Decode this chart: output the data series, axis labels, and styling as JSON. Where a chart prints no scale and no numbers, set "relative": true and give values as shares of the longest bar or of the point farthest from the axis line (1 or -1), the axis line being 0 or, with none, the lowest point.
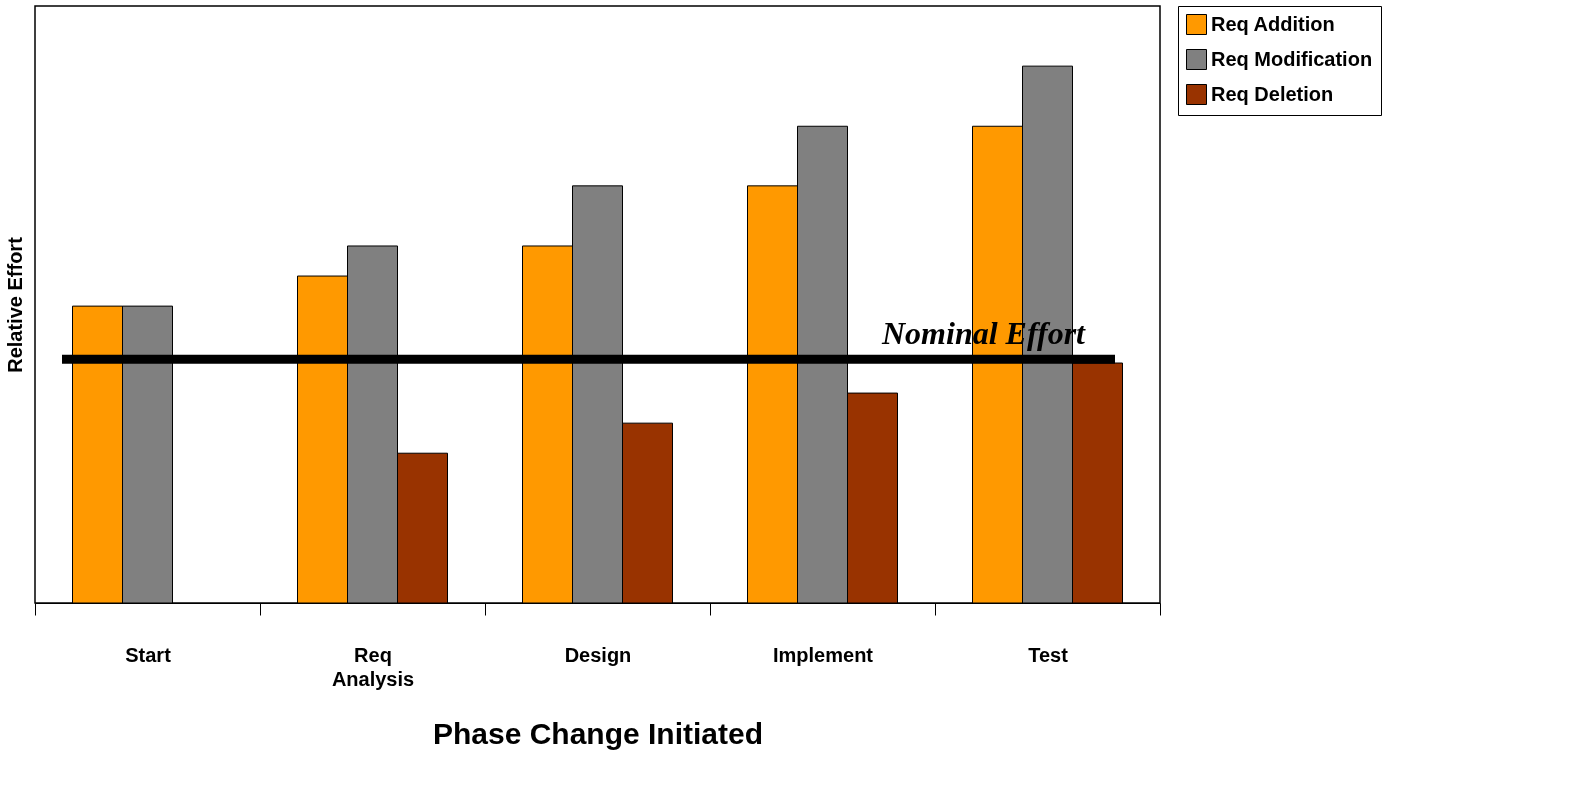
{
  "chart_data": {
    "type": "bar",
    "relative": true,
    "xlabel": "Phase Change Initiated",
    "ylabel": "Relative Effort",
    "categories": [
      "Start",
      "Req Analysis",
      "Design",
      "Implement",
      "Test"
    ],
    "series": [
      {
        "name": "Req Addition",
        "color": "#ff9900",
        "values": [
          0.553,
          0.609,
          0.665,
          0.777,
          0.888
        ]
      },
      {
        "name": "Req Modification",
        "color": "#808080",
        "values": [
          0.553,
          0.665,
          0.777,
          0.888,
          1
        ]
      },
      {
        "name": "Req Deletion",
        "color": "#993300",
        "values": [
          null,
          0.279,
          0.335,
          0.391,
          0.447
        ]
      }
    ],
    "ref_lines": [
      {
        "axis": "y",
        "value": 0.454,
        "label": "Nominal Effort",
        "color": "#000000"
      }
    ],
    "legend": "right",
    "grid": false
  }
}
